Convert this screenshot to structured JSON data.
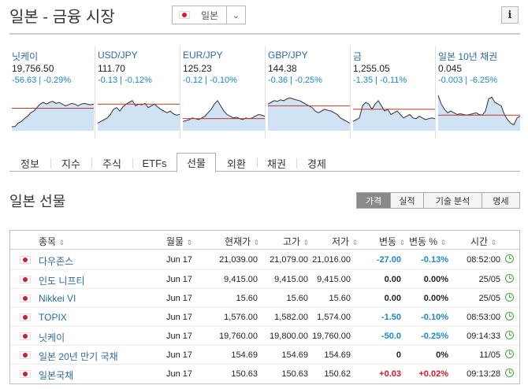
{
  "header": {
    "title": "일본 - 금융 시장",
    "country_select": "일본",
    "info_icon": "info-icon"
  },
  "tiles": [
    {
      "name": "닛케이",
      "price": "19,756.50",
      "change": "-56.63",
      "change_pct": "-0.29%"
    },
    {
      "name": "USD/JPY",
      "price": "111.70",
      "change": "-0.13",
      "change_pct": "-0.12%"
    },
    {
      "name": "EUR/JPY",
      "price": "125.23",
      "change": "-0.12",
      "change_pct": "-0.10%"
    },
    {
      "name": "GBP/JPY",
      "price": "144.38",
      "change": "-0.36",
      "change_pct": "-0.25%"
    },
    {
      "name": "금",
      "price": "1,255.05",
      "change": "-1.35",
      "change_pct": "-0.11%"
    },
    {
      "name": "일본 10년 채권",
      "price": "0.045",
      "change": "-0.003",
      "change_pct": "-6.25%"
    }
  ],
  "sparklines": [
    {
      "ref": 0.42,
      "values": [
        0.95,
        0.95,
        0.85,
        0.8,
        0.72,
        0.65,
        0.55,
        0.5,
        0.4,
        0.3,
        0.25,
        0.3,
        0.25,
        0.22,
        0.28,
        0.25,
        0.3,
        0.35,
        0.32,
        0.28,
        0.3,
        0.35,
        0.3,
        0.28,
        0.3,
        0.32,
        0.3
      ]
    },
    {
      "ref": 0.3,
      "values": [
        0.85,
        0.8,
        0.75,
        0.7,
        0.6,
        0.45,
        0.4,
        0.5,
        0.38,
        0.3,
        0.25,
        0.2,
        0.35,
        0.3,
        0.32,
        0.28,
        0.4,
        0.35,
        0.3,
        0.38,
        0.45,
        0.5,
        0.55,
        0.5,
        0.58,
        0.62,
        0.6
      ]
    },
    {
      "ref": 0.72,
      "values": [
        0.8,
        0.78,
        0.75,
        0.7,
        0.72,
        0.75,
        0.7,
        0.65,
        0.55,
        0.45,
        0.3,
        0.2,
        0.35,
        0.5,
        0.6,
        0.65,
        0.7,
        0.68,
        0.72,
        0.75,
        0.7,
        0.72,
        0.7,
        0.65,
        0.6,
        0.62,
        0.65
      ]
    },
    {
      "ref": 0.35,
      "values": [
        0.3,
        0.25,
        0.2,
        0.22,
        0.18,
        0.2,
        0.15,
        0.12,
        0.15,
        0.18,
        0.2,
        0.25,
        0.3,
        0.35,
        0.4,
        0.5,
        0.55,
        0.5,
        0.45,
        0.48,
        0.5,
        0.55,
        0.6,
        0.7,
        0.75,
        0.8,
        0.85
      ]
    },
    {
      "ref": 0.45,
      "values": [
        0.8,
        0.75,
        0.7,
        0.35,
        0.25,
        0.3,
        0.45,
        0.3,
        0.2,
        0.35,
        0.5,
        0.45,
        0.6,
        0.55,
        0.5,
        0.6,
        0.7,
        0.65,
        0.6,
        0.7,
        0.72,
        0.65,
        0.7,
        0.75,
        0.72,
        0.7,
        0.72
      ]
    },
    {
      "ref": 0.62,
      "values": [
        0.05,
        0.3,
        0.45,
        0.55,
        0.5,
        0.55,
        0.6,
        0.58,
        0.6,
        0.62,
        0.6,
        0.58,
        0.55,
        0.6,
        0.62,
        0.5,
        0.15,
        0.1,
        0.25,
        0.3,
        0.35,
        0.6,
        0.75,
        0.85,
        0.9,
        0.7,
        0.65
      ]
    }
  ],
  "tabs": [
    "정보",
    "지수",
    "주식",
    "ETFs",
    "선물",
    "외환",
    "채권",
    "경제"
  ],
  "active_tab": "선물",
  "section": {
    "title": "일본 선물",
    "view_buttons": [
      "가격",
      "실적",
      "기술 분석",
      "명세"
    ],
    "active_view": "가격"
  },
  "table": {
    "headers": {
      "name": "종목",
      "month": "월물",
      "last": "현재가",
      "high": "고가",
      "low": "저가",
      "chg": "변동",
      "chg_pct": "변동 %",
      "time": "시간",
      "sort_icon": "⇕"
    },
    "rows": [
      {
        "name": "다우존스",
        "month": "Jun 17",
        "last": "21,039.00",
        "high": "21,079.00",
        "low": "21,016.00",
        "chg": "-27.00",
        "chg_pct": "-0.13%",
        "time": "08:52:00",
        "dir": "neg"
      },
      {
        "name": "인도 니프티",
        "month": "Jun 17",
        "last": "9,415.00",
        "high": "9,415.00",
        "low": "9,415.00",
        "chg": "0.00",
        "chg_pct": "0.00%",
        "time": "25/05",
        "dir": "flat"
      },
      {
        "name": "Nikkei VI",
        "month": "Jun 17",
        "last": "15.60",
        "high": "15.60",
        "low": "15.60",
        "chg": "0.00",
        "chg_pct": "0.00%",
        "time": "25/05",
        "dir": "flat"
      },
      {
        "name": "TOPIX",
        "month": "Jun 17",
        "last": "1,576.00",
        "high": "1,582.00",
        "low": "1,574.00",
        "chg": "-1.50",
        "chg_pct": "-0.10%",
        "time": "08:53:00",
        "dir": "neg"
      },
      {
        "name": "닛케이",
        "month": "Jun 17",
        "last": "19,760.00",
        "high": "19,800.00",
        "low": "19,760.00",
        "chg": "-50.0",
        "chg_pct": "-0.25%",
        "time": "09:14:33",
        "dir": "neg"
      },
      {
        "name": "일본 20년 만기 국채",
        "month": "Jun 17",
        "last": "154.69",
        "high": "154.69",
        "low": "154.69",
        "chg": "0",
        "chg_pct": "0%",
        "time": "11/05",
        "dir": "flat"
      },
      {
        "name": "일본국채",
        "month": "Jun 17",
        "last": "150.63",
        "high": "150.63",
        "low": "150.62",
        "chg": "+0.03",
        "chg_pct": "+0.02%",
        "time": "09:13:28",
        "dir": "pos"
      }
    ]
  },
  "colors": {
    "negative": "#1a88c9",
    "positive": "#d3182a",
    "link": "#2d6aa3",
    "ref_line": "#c0392b",
    "spark_line": "#333333",
    "spark_fill": "#cfe3f5"
  }
}
